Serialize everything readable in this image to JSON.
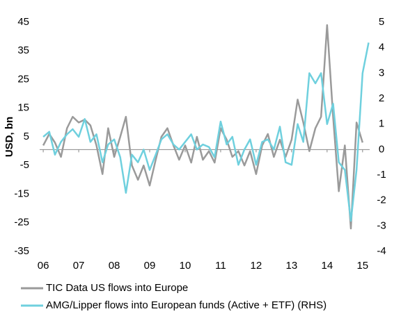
{
  "chart_data": {
    "type": "line",
    "ylabel": "USD, bn",
    "x": [
      2006.0,
      2006.17,
      2006.33,
      2006.5,
      2006.67,
      2006.83,
      2007.0,
      2007.17,
      2007.33,
      2007.5,
      2007.67,
      2007.83,
      2008.0,
      2008.17,
      2008.33,
      2008.5,
      2008.67,
      2008.83,
      2009.0,
      2009.17,
      2009.33,
      2009.5,
      2009.67,
      2009.83,
      2010.0,
      2010.17,
      2010.33,
      2010.5,
      2010.67,
      2010.83,
      2011.0,
      2011.17,
      2011.33,
      2011.5,
      2011.67,
      2011.83,
      2012.0,
      2012.17,
      2012.33,
      2012.5,
      2012.67,
      2012.83,
      2013.0,
      2013.17,
      2013.33,
      2013.5,
      2013.67,
      2013.83,
      2014.0,
      2014.17,
      2014.33,
      2014.5,
      2014.67,
      2014.83,
      2015.0,
      2015.17
    ],
    "series": [
      {
        "name": "TIC Data US flows into Europe",
        "color": "#9a9a9a",
        "values": [
          2,
          6,
          3,
          -2,
          8,
          12,
          10,
          11,
          9,
          2,
          -8,
          8,
          -2,
          5,
          12,
          -5,
          -10,
          -5,
          -12,
          -3,
          5,
          8,
          2,
          -3,
          2,
          -4,
          5,
          -3,
          0,
          -4,
          8,
          4,
          -2,
          0,
          -5,
          0,
          -8,
          2,
          6,
          -2,
          4,
          -2,
          4,
          18,
          10,
          0,
          8,
          12,
          44,
          12,
          -14,
          2,
          -27,
          10,
          3,
          null
        ]
      },
      {
        "name": "AMG/Lipper flows into European funds (Active + ETF) (RHS)",
        "color": "#6fd0de",
        "axis": "y2",
        "values": [
          0.5,
          0.7,
          -0.2,
          0.3,
          0.6,
          0.8,
          0.5,
          1.2,
          0.3,
          0.6,
          -0.5,
          0.2,
          0.4,
          -0.3,
          -1.7,
          -0.2,
          -0.5,
          0,
          -0.8,
          -0.2,
          0.4,
          0.6,
          0.2,
          0,
          0.3,
          0.6,
          0,
          0.2,
          0.1,
          -0.3,
          1.1,
          0.2,
          0.5,
          -0.6,
          0,
          0.4,
          -0.6,
          0.3,
          0.4,
          0,
          0.9,
          -0.5,
          -0.6,
          1.0,
          0.3,
          3.0,
          2.6,
          3.0,
          1.0,
          1.8,
          -0.5,
          -0.8,
          -2.8,
          -0.8,
          3.0,
          4.2
        ]
      }
    ],
    "xlim": [
      2005.9,
      2015.2
    ],
    "xticks": [
      {
        "value": 2006,
        "label": "06"
      },
      {
        "value": 2007,
        "label": "07"
      },
      {
        "value": 2008,
        "label": "08"
      },
      {
        "value": 2009,
        "label": "09"
      },
      {
        "value": 2010,
        "label": "10"
      },
      {
        "value": 2011,
        "label": "11"
      },
      {
        "value": 2012,
        "label": "12"
      },
      {
        "value": 2013,
        "label": "13"
      },
      {
        "value": 2014,
        "label": "14"
      },
      {
        "value": 2015,
        "label": "15"
      }
    ],
    "ylim": [
      -35,
      45
    ],
    "yticks": [
      -35,
      -25,
      -15,
      -5,
      5,
      15,
      25,
      35,
      45
    ],
    "y2lim": [
      -4,
      5
    ],
    "y2ticks": [
      -4,
      -3,
      -2,
      -1,
      0,
      1,
      2,
      3,
      4,
      5
    ]
  }
}
